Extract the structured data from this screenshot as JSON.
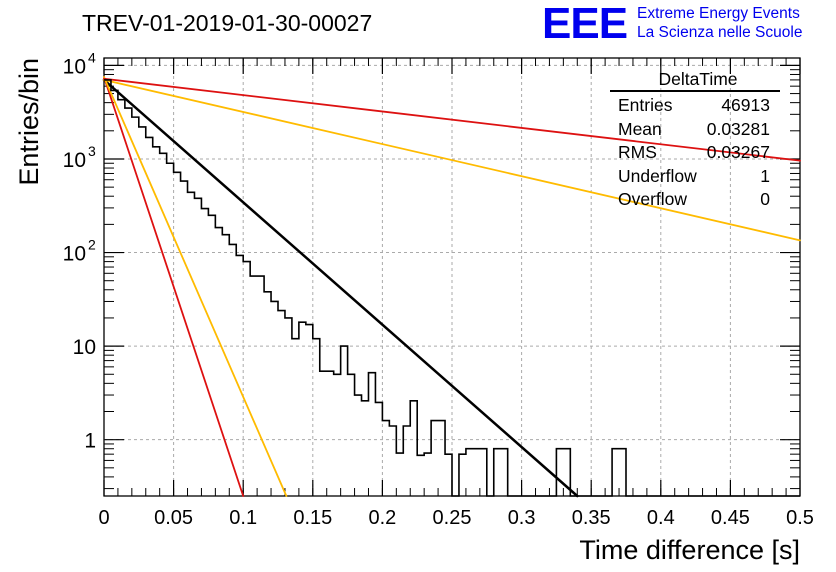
{
  "header": {
    "title": "TREV-01-2019-01-30-00027",
    "logo_text": "EEE",
    "logo_line1": "Extreme Energy Events",
    "logo_line2": "La Scienza nelle Scuole"
  },
  "stats_box": {
    "title": "DeltaTime",
    "rows": [
      {
        "label": "Entries",
        "value": "46913"
      },
      {
        "label": "Mean",
        "value": "0.03281"
      },
      {
        "label": "RMS",
        "value": "0.03267"
      },
      {
        "label": "Underflow",
        "value": "1"
      },
      {
        "label": "Overflow",
        "value": "0"
      }
    ]
  },
  "chart_data": {
    "type": "line",
    "title": "TREV-01-2019-01-30-00027",
    "xlabel": "Time difference [s]",
    "ylabel": "Entries/bin",
    "xlim": [
      0,
      0.5
    ],
    "ylim": [
      0.25,
      12000
    ],
    "y_scale": "log",
    "grid": true,
    "x_ticks": [
      "0",
      "0.05",
      "0.1",
      "0.15",
      "0.2",
      "0.25",
      "0.3",
      "0.35",
      "0.4",
      "0.45",
      "0.5"
    ],
    "y_ticks": [
      {
        "value": 1,
        "label": "1"
      },
      {
        "value": 10,
        "label": "10"
      },
      {
        "value": 100,
        "label": "10",
        "exp": "2"
      },
      {
        "value": 1000,
        "label": "10",
        "exp": "3"
      },
      {
        "value": 10000,
        "label": "10",
        "exp": "4"
      }
    ],
    "histogram": {
      "name": "DeltaTime",
      "color": "#000000",
      "bin_width": 0.005,
      "values": [
        7000,
        5400,
        4300,
        3500,
        2800,
        2200,
        1700,
        1350,
        1150,
        900,
        720,
        580,
        440,
        380,
        295,
        250,
        185,
        155,
        122,
        93,
        80,
        56,
        56,
        38,
        30,
        24,
        20,
        12,
        18,
        17,
        12,
        5.4,
        5.4,
        5,
        10,
        5,
        3,
        2.6,
        5.2,
        2.5,
        1.6,
        1.4,
        0.72,
        1.4,
        2.6,
        0.68,
        0.72,
        1.6,
        1.6,
        0.7,
        0.22,
        0.7,
        0.8,
        0.8,
        0.8,
        0.2,
        0.8,
        0.8,
        0.25,
        0.2,
        0.25,
        0.2,
        0.25,
        0.2,
        0.25,
        0.8,
        0.8,
        0.2,
        0.25,
        0.2,
        0.25,
        0.2,
        0.25,
        0.8,
        0.8,
        0.2,
        0.25,
        0.2,
        0.25,
        0.2,
        0.25,
        0.2,
        0.25,
        0.2,
        0.25,
        0.2,
        0.25,
        0.2,
        0.25,
        0.2,
        0.25,
        0.2,
        0.25,
        0.2,
        0.25,
        0.2,
        0.25,
        0.2,
        0.25,
        0.2
      ]
    },
    "fits": [
      {
        "name": "fit",
        "color": "#000000",
        "width": 2.5,
        "x": [
          0,
          0.34
        ],
        "y": [
          7000,
          0.25
        ]
      },
      {
        "name": "red-steep",
        "color": "#dd1111",
        "width": 1.8,
        "x": [
          0,
          0.1
        ],
        "y": [
          7500,
          0.25
        ]
      },
      {
        "name": "yellow-steep",
        "color": "#ffbb00",
        "width": 1.8,
        "x": [
          0,
          0.131
        ],
        "y": [
          7500,
          0.25
        ]
      },
      {
        "name": "yellow-flat",
        "color": "#ffbb00",
        "width": 1.8,
        "x": [
          0,
          0.5
        ],
        "y": [
          7000,
          135
        ]
      },
      {
        "name": "red-flat",
        "color": "#dd1111",
        "width": 1.8,
        "x": [
          0,
          0.5
        ],
        "y": [
          7200,
          960
        ]
      }
    ]
  }
}
